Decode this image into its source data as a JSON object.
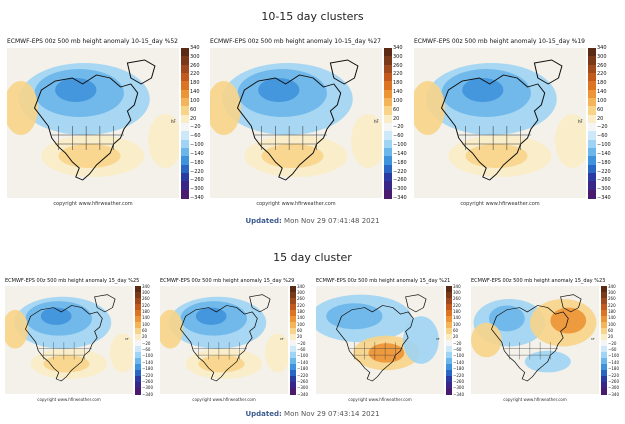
{
  "row1": {
    "title": "10-15 day clusters",
    "updated_label": "Updated:",
    "updated_value": "Mon Nov 29 07:41:48 2021",
    "panels": [
      {
        "title": "ECMWF-EPS 00z 500 mb height anomaly 10-15_day %52",
        "pattern": "west-trough"
      },
      {
        "title": "ECMWF-EPS 00z 500 mb height anomaly 10-15_day %27",
        "pattern": "west-trough"
      },
      {
        "title": "ECMWF-EPS 00z 500 mb height anomaly 10-15_day %19",
        "pattern": "west-trough"
      }
    ]
  },
  "row2": {
    "title": "15 day cluster",
    "updated_label": "Updated:",
    "updated_value": "Mon Nov 29 07:43:14 2021",
    "panels": [
      {
        "title": "ECMWF-EPS 00z 500 mb height anomaly 15_day %25",
        "pattern": "west-trough"
      },
      {
        "title": "ECMWF-EPS 00z 500 mb height anomaly 15_day %29",
        "pattern": "west-trough"
      },
      {
        "title": "ECMWF-EPS 00z 500 mb height anomaly 15_day %21",
        "pattern": "central-ridge"
      },
      {
        "title": "ECMWF-EPS 00z 500 mb height anomaly 15_day %23",
        "pattern": "east-ridge"
      }
    ]
  },
  "copyright": "copyright www.hfirweather.com",
  "colorbar": {
    "ticks": [
      "340",
      "300",
      "260",
      "220",
      "180",
      "140",
      "100",
      "60",
      "20",
      "−20",
      "−60",
      "−100",
      "−140",
      "−180",
      "−220",
      "−260",
      "−300",
      "−340"
    ],
    "unit": "hF",
    "colors": [
      "#5a2a14",
      "#7a3a1a",
      "#a0481e",
      "#c25a1e",
      "#dc7424",
      "#ec9436",
      "#f4b45a",
      "#f8d48a",
      "#faecc6",
      "#f5f5f5",
      "#cde8f8",
      "#9fd4f4",
      "#6bb6ea",
      "#3f92dc",
      "#2a66c4",
      "#2a3aa0",
      "#3a2686",
      "#4a1a6e"
    ]
  }
}
